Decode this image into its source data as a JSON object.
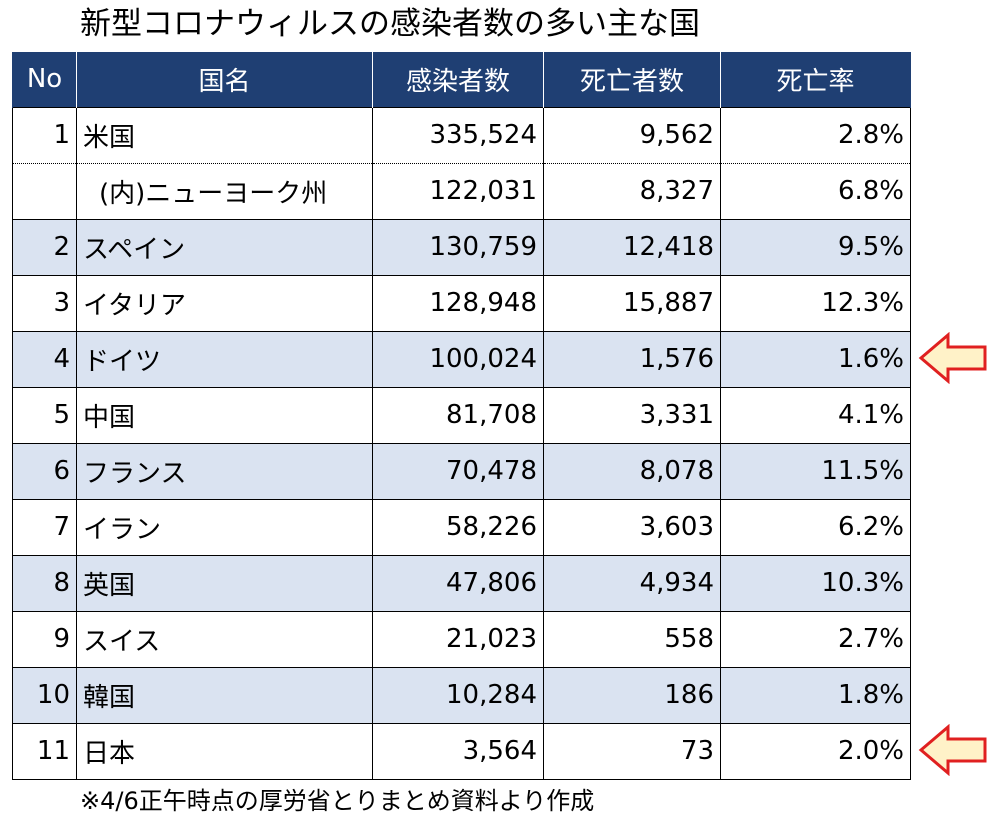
{
  "title": "新型コロナウィルスの感染者数の多い主な国",
  "colors": {
    "header_bg": "#1f3f73",
    "header_text": "#ffffff",
    "row_shade": "#dae3f1",
    "arrow_stroke": "#e02020",
    "arrow_fill": "#fff2c8"
  },
  "table": {
    "headers": [
      "No",
      "国名",
      "感染者数",
      "死亡者数",
      "死亡率"
    ],
    "rows": [
      {
        "no": "1",
        "name": "米国",
        "cases": "335,524",
        "deaths": "9,562",
        "rate": "2.8%"
      },
      {
        "no": "",
        "name": "(内)ニューヨーク州",
        "cases": "122,031",
        "deaths": "8,327",
        "rate": "6.8%"
      },
      {
        "no": "2",
        "name": "スペイン",
        "cases": "130,759",
        "deaths": "12,418",
        "rate": "9.5%"
      },
      {
        "no": "3",
        "name": "イタリア",
        "cases": "128,948",
        "deaths": "15,887",
        "rate": "12.3%"
      },
      {
        "no": "4",
        "name": "ドイツ",
        "cases": "100,024",
        "deaths": "1,576",
        "rate": "1.6%"
      },
      {
        "no": "5",
        "name": "中国",
        "cases": "81,708",
        "deaths": "3,331",
        "rate": "4.1%"
      },
      {
        "no": "6",
        "name": "フランス",
        "cases": "70,478",
        "deaths": "8,078",
        "rate": "11.5%"
      },
      {
        "no": "7",
        "name": "イラン",
        "cases": "58,226",
        "deaths": "3,603",
        "rate": "6.2%"
      },
      {
        "no": "8",
        "name": "英国",
        "cases": "47,806",
        "deaths": "4,934",
        "rate": "10.3%"
      },
      {
        "no": "9",
        "name": "スイス",
        "cases": "21,023",
        "deaths": "558",
        "rate": "2.7%"
      },
      {
        "no": "10",
        "name": "韓国",
        "cases": "10,284",
        "deaths": "186",
        "rate": "1.8%"
      },
      {
        "no": "11",
        "name": "日本",
        "cases": "3,564",
        "deaths": "73",
        "rate": "2.0%"
      }
    ]
  },
  "footnote": "※4/6正午時点の厚労省とりまとめ資料より作成",
  "icons": {
    "highlight_arrow": "left-arrow-icon"
  }
}
